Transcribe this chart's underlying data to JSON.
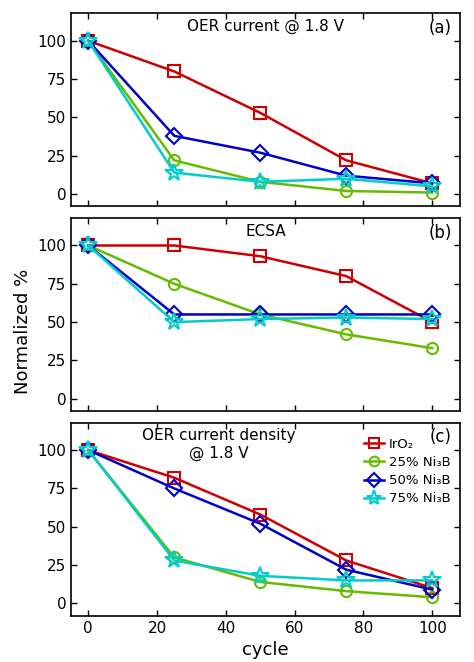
{
  "cycles": [
    0,
    25,
    50,
    75,
    100
  ],
  "panel_a": {
    "title": "OER current @ 1.8 V",
    "label": "(a)",
    "IrO2": [
      100,
      80,
      53,
      22,
      7
    ],
    "Ni25": [
      100,
      22,
      8,
      2,
      1
    ],
    "Ni50": [
      100,
      38,
      27,
      12,
      7
    ],
    "Ni75": [
      100,
      14,
      8,
      10,
      5
    ]
  },
  "panel_b": {
    "title": "ECSA",
    "label": "(b)",
    "IrO2": [
      100,
      100,
      93,
      80,
      50
    ],
    "Ni25": [
      100,
      75,
      55,
      42,
      33
    ],
    "Ni50": [
      100,
      55,
      55,
      55,
      55
    ],
    "Ni75": [
      100,
      50,
      52,
      53,
      52
    ]
  },
  "panel_c": {
    "title": "OER current density\n@ 1.8 V",
    "label": "(c)",
    "IrO2": [
      100,
      82,
      58,
      28,
      10
    ],
    "Ni25": [
      100,
      30,
      14,
      8,
      4
    ],
    "Ni50": [
      100,
      75,
      52,
      22,
      9
    ],
    "Ni75": [
      100,
      28,
      18,
      15,
      15
    ]
  },
  "legend": {
    "IrO2": "IrO₂",
    "Ni25": "25% Ni₃B",
    "Ni50": "50% Ni₃B",
    "Ni75": "75% Ni₃B"
  },
  "colors": {
    "IrO2": "#cc0000",
    "Ni25": "#66bb00",
    "Ni50": "#0000cc",
    "Ni75": "#00cccc"
  },
  "markers": {
    "IrO2": "s",
    "Ni25": "o",
    "Ni50": "D",
    "Ni75": "*"
  },
  "ylim": [
    -8,
    118
  ],
  "yticks": [
    0,
    25,
    50,
    75,
    100
  ],
  "xlim": [
    -5,
    108
  ],
  "xticks": [
    0,
    20,
    40,
    60,
    80,
    100
  ],
  "ylabel": "Normalized %",
  "xlabel": "cycle",
  "background_color": "#ffffff"
}
